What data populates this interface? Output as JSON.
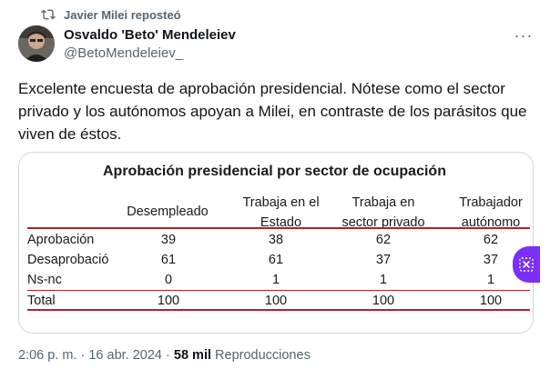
{
  "repost": {
    "text": "Javier Milei reposteó",
    "icon": "repost-icon"
  },
  "author": {
    "name": "Osvaldo 'Beto' Mendeleiev",
    "handle": "@BetoMendeleiev_"
  },
  "more": {
    "icon": "more-icon",
    "label": "···"
  },
  "tweet": {
    "text": "Excelente encuesta de aprobación presidencial. Nótese como el sector privado y los autónomos apoyan a Milei, en contraste de los parásitos que viven de éstos."
  },
  "table": {
    "title": "Aprobación presidencial por sector de ocupación",
    "columns": [
      {
        "line1": "Desempleado",
        "line2": ""
      },
      {
        "line1": "Trabaja en el",
        "line2": "Estado"
      },
      {
        "line1": "Trabaja en",
        "line2": "sector privado"
      },
      {
        "line1": "Trabajador",
        "line2": "autónomo"
      }
    ],
    "rows": [
      {
        "label": "Aprobación",
        "values": [
          "39",
          "38",
          "62",
          "62"
        ]
      },
      {
        "label": "Desaprobació",
        "values": [
          "61",
          "61",
          "37",
          "37"
        ]
      },
      {
        "label": "Ns-nc",
        "values": [
          "0",
          "1",
          "1",
          "1"
        ]
      },
      {
        "label": "Total",
        "values": [
          "100",
          "100",
          "100",
          "100"
        ]
      }
    ]
  },
  "meta": {
    "time": "2:06 p. m. · 16 abr. 2024 · ",
    "views": "58 mil",
    "views_label": " Reproducciones"
  },
  "colors": {
    "accent_rule": "#b2202a",
    "floating_button": "#7b2ff7",
    "secondary_text": "#536471"
  }
}
